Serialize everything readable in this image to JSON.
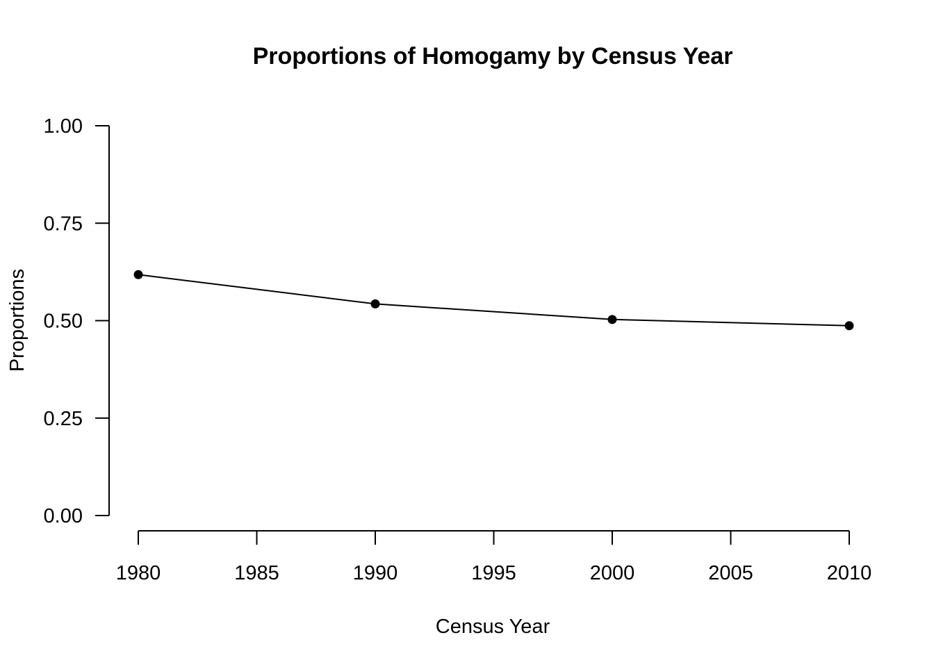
{
  "chart_data": {
    "type": "line",
    "title": "Proportions of Homogamy by Census Year",
    "xlabel": "Census Year",
    "ylabel": "Proportions",
    "x": [
      1980,
      1990,
      2000,
      2010
    ],
    "series": [
      {
        "values": [
          0.618,
          0.543,
          0.503,
          0.487
        ]
      }
    ],
    "xlim": [
      1980,
      2010
    ],
    "ylim": [
      0,
      1
    ],
    "x_ticks": [
      "1980",
      "1985",
      "1990",
      "1995",
      "2000",
      "2005",
      "2010"
    ],
    "y_ticks": [
      "0.00",
      "0.25",
      "0.50",
      "0.75",
      "1.00"
    ],
    "grid": false,
    "marker": "filled-circle",
    "line_color": "#000000"
  }
}
